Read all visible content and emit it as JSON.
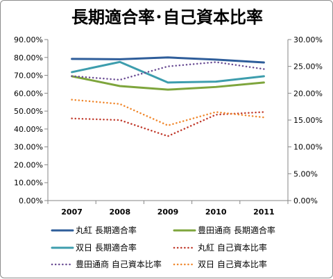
{
  "chart_data": {
    "type": "line",
    "title": "長期適合率･自己資本比率",
    "categories": [
      "2007",
      "2008",
      "2009",
      "2010",
      "2011"
    ],
    "left_axis": {
      "ticks": [
        "0.00%",
        "10.00%",
        "20.00%",
        "30.00%",
        "40.00%",
        "50.00%",
        "60.00%",
        "70.00%",
        "80.00%",
        "90.00%"
      ],
      "ylim": [
        0,
        90
      ]
    },
    "right_axis": {
      "ticks": [
        "0.00%",
        "5.00%",
        "10.00%",
        "15.00%",
        "20.00%",
        "25.00%",
        "30.00%"
      ],
      "ylim": [
        0,
        30
      ]
    },
    "series": [
      {
        "name": "丸紅 長期適合率",
        "axis": "left",
        "style": "solid",
        "color": "#2e5d9a",
        "values": [
          79.2,
          79.0,
          80.0,
          78.8,
          77.2
        ]
      },
      {
        "name": "豊田通商 長期適合率",
        "axis": "left",
        "style": "solid",
        "color": "#7ea53c",
        "values": [
          69.5,
          64.0,
          62.0,
          63.5,
          66.0
        ]
      },
      {
        "name": "双日 長期適合率",
        "axis": "left",
        "style": "solid",
        "color": "#3d9dad",
        "values": [
          71.8,
          77.5,
          66.0,
          66.5,
          69.5
        ]
      },
      {
        "name": "丸紅 自己資本比率",
        "axis": "right",
        "style": "dotted",
        "color": "#c0392b",
        "values": [
          15.3,
          15.0,
          12.0,
          16.0,
          16.5
        ]
      },
      {
        "name": "豊田通商 自己資本比率",
        "axis": "right",
        "style": "dotted",
        "color": "#6a4c93",
        "values": [
          23.2,
          22.5,
          25.0,
          25.8,
          24.5
        ]
      },
      {
        "name": "双日 自己資本比率",
        "axis": "right",
        "style": "dotted",
        "color": "#f0872c",
        "values": [
          18.8,
          18.0,
          14.0,
          16.5,
          15.5
        ]
      }
    ],
    "grid": false,
    "legend_placement": "bottom"
  }
}
